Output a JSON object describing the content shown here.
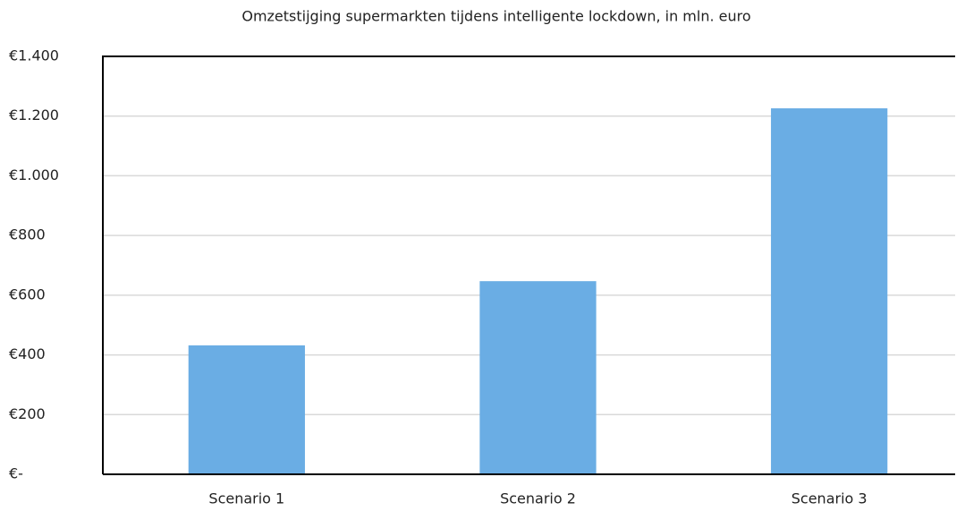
{
  "chart_data": {
    "type": "bar",
    "title": "Omzetstijging supermarkten tijdens intelligente lockdown, in mln. euro",
    "categories": [
      "Scenario 1",
      "Scenario 2",
      "Scenario 3"
    ],
    "values": [
      432,
      647,
      1226
    ],
    "color": "#6aade4",
    "ylim": [
      0,
      1400
    ],
    "yticks": [
      {
        "value": 0,
        "label": "€-"
      },
      {
        "value": 200,
        "label": "€200"
      },
      {
        "value": 400,
        "label": "€400"
      },
      {
        "value": 600,
        "label": "€600"
      },
      {
        "value": 800,
        "label": "€800"
      },
      {
        "value": 1000,
        "label": "€1.000"
      },
      {
        "value": 1200,
        "label": "€1.200"
      },
      {
        "value": 1400,
        "label": "€1.400"
      }
    ],
    "grid": true
  }
}
